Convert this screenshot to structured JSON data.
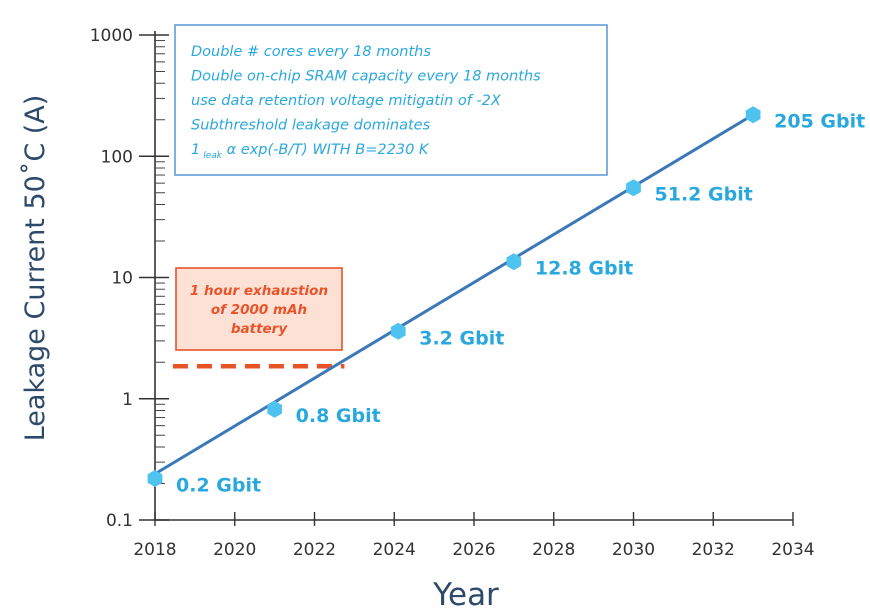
{
  "chart_data": {
    "type": "line",
    "title": "",
    "xlabel": "Year",
    "ylabel": "Leakage Current 50˚C (A)",
    "yscale": "log",
    "xlim": [
      2018,
      2034
    ],
    "ylim": [
      0.1,
      1000
    ],
    "x_ticks": [
      "2018",
      "2020",
      "2022",
      "2024",
      "2026",
      "2028",
      "2030",
      "2032",
      "2034"
    ],
    "y_ticks": [
      "0.1",
      "1",
      "10",
      "100",
      "1000"
    ],
    "series": [
      {
        "name": "Leakage current",
        "x": [
          2018,
          2021,
          2024.1,
          2027,
          2030,
          2033
        ],
        "y": [
          0.22,
          0.82,
          3.6,
          13.5,
          55,
          220
        ],
        "labels": [
          "0.2 Gbit",
          "0.8 Gbit",
          "3.2 Gbit",
          "12.8 Gbit",
          "51.2 Gbit",
          "205 Gbit"
        ]
      }
    ],
    "fit_line": {
      "x": [
        2018,
        2033
      ],
      "y": [
        0.24,
        220
      ]
    },
    "battery_threshold": {
      "y": 2.0,
      "x_range": [
        2018.5,
        2022.7
      ]
    },
    "annotations": {
      "assumptions": [
        "Double # cores every 18 months",
        "Double on-chip SRAM capacity every 18 months",
        "use data retention voltage mitigatin of -2X",
        "Subthreshold leakage dominates"
      ],
      "formula": {
        "prefix": "1",
        "subscript": "leak",
        "body": " α exp(-B/T) WITH B=2230 K"
      },
      "battery_note": [
        "1 hour exhaustion",
        "of 2000 mAh",
        "battery"
      ]
    },
    "colors": {
      "line": "#3b78b8",
      "marker": "#4fc3ef",
      "label": "#29a8dd",
      "battery": "#e8532a",
      "battery_fill": "#fce1d4",
      "note_border": "#4a90d9",
      "axis_title": "#2d4a6b"
    }
  }
}
